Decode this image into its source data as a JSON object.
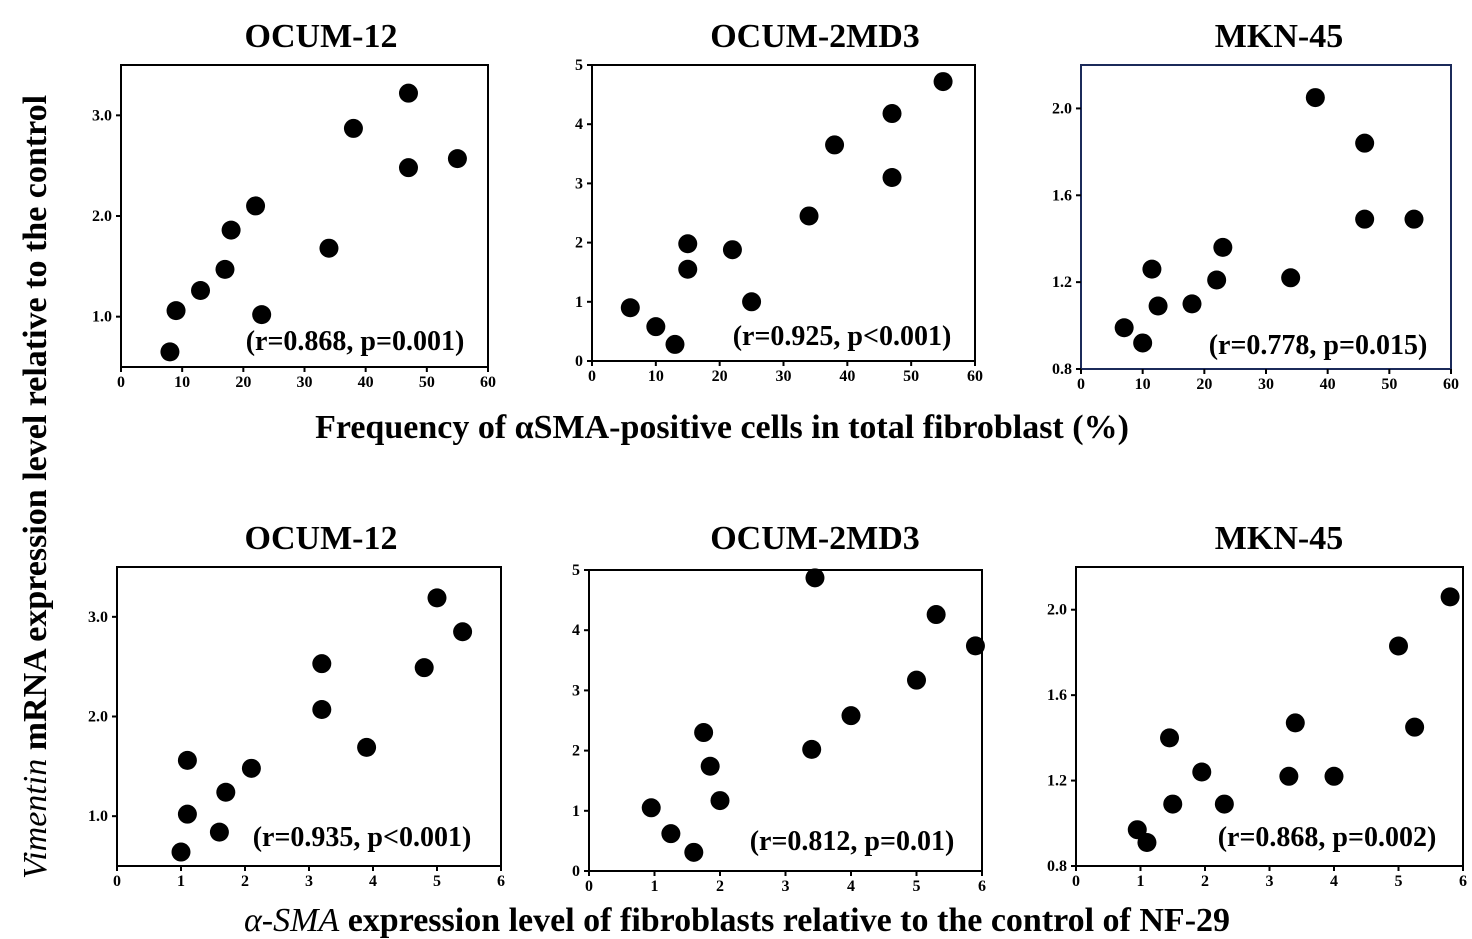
{
  "figure": {
    "y_label_italic": "Vimentin",
    "y_label_rest": " mRNA expression level relative to the control",
    "top_x_label": "Frequency of αSMA-positive cells in total fibroblast (%)",
    "bottom_x_label_italic": "α-SMA",
    "bottom_x_label_rest": " expression level of fibroblasts relative to the control of NF-29"
  },
  "chart_data": [
    {
      "type": "scatter",
      "title": "OCUM-12",
      "annotation": "(r=0.868, p=0.001)",
      "xlim": [
        0,
        60
      ],
      "ylim": [
        0.5,
        3.5
      ],
      "xticks": [
        0,
        10,
        20,
        30,
        40,
        50,
        60
      ],
      "xtick_labels": [
        "0",
        "10",
        "20",
        "30",
        "40",
        "50",
        "60"
      ],
      "yticks": [
        1.0,
        2.0,
        3.0
      ],
      "ytick_labels": [
        "1.0",
        "2.0",
        "3.0"
      ],
      "x": [
        8,
        9,
        13,
        17,
        18,
        22,
        23,
        34,
        38,
        47,
        47,
        55
      ],
      "y": [
        0.65,
        1.06,
        1.26,
        1.47,
        1.86,
        2.1,
        1.02,
        1.68,
        2.87,
        3.22,
        2.48,
        2.57
      ]
    },
    {
      "type": "scatter",
      "title": "OCUM-2MD3",
      "annotation": "(r=0.925, p<0.001)",
      "xlim": [
        0,
        60
      ],
      "ylim": [
        0,
        5
      ],
      "xticks": [
        0,
        10,
        20,
        30,
        40,
        50,
        60
      ],
      "xtick_labels": [
        "0",
        "10",
        "20",
        "30",
        "40",
        "50",
        "60"
      ],
      "yticks": [
        0,
        1,
        2,
        3,
        4,
        5
      ],
      "ytick_labels": [
        "0",
        "1",
        "2",
        "3",
        "4",
        "5"
      ],
      "x": [
        6,
        10,
        13,
        15,
        15,
        22,
        25,
        34,
        38,
        47,
        47,
        55
      ],
      "y": [
        0.9,
        0.58,
        0.28,
        1.98,
        1.55,
        1.88,
        1.0,
        2.45,
        3.65,
        4.18,
        3.1,
        4.72
      ]
    },
    {
      "type": "scatter",
      "title": "MKN-45",
      "annotation": "(r=0.778, p=0.015)",
      "xlim": [
        0,
        60
      ],
      "ylim": [
        0.8,
        2.2
      ],
      "xticks": [
        0,
        10,
        20,
        30,
        40,
        50,
        60
      ],
      "xtick_labels": [
        "0",
        "10",
        "20",
        "30",
        "40",
        "50",
        "60"
      ],
      "yticks": [
        0.8,
        1.2,
        1.6,
        2.0
      ],
      "ytick_labels": [
        "0.8",
        "1.2",
        "1.6",
        "2.0"
      ],
      "x": [
        7,
        10,
        11.5,
        12.5,
        18,
        22,
        23,
        34,
        38,
        46,
        46,
        54
      ],
      "y": [
        0.99,
        0.92,
        1.26,
        1.09,
        1.1,
        1.21,
        1.36,
        1.22,
        2.05,
        1.84,
        1.49,
        1.49
      ]
    },
    {
      "type": "scatter",
      "title": "OCUM-12",
      "annotation": "(r=0.935, p<0.001)",
      "xlim": [
        0,
        6
      ],
      "ylim": [
        0.5,
        3.5
      ],
      "xticks": [
        0,
        1,
        2,
        3,
        4,
        5,
        6
      ],
      "xtick_labels": [
        "0",
        "1",
        "2",
        "3",
        "4",
        "5",
        "6"
      ],
      "yticks": [
        1.0,
        2.0,
        3.0
      ],
      "ytick_labels": [
        "1.0",
        "2.0",
        "3.0"
      ],
      "x": [
        1.0,
        1.1,
        1.1,
        1.6,
        1.7,
        2.1,
        3.2,
        3.2,
        3.9,
        4.8,
        5.0,
        5.4
      ],
      "y": [
        0.64,
        1.02,
        1.56,
        0.84,
        1.24,
        1.48,
        2.53,
        2.07,
        1.69,
        2.49,
        3.19,
        2.85
      ]
    },
    {
      "type": "scatter",
      "title": "OCUM-2MD3",
      "annotation": "(r=0.812, p=0.01)",
      "xlim": [
        0,
        6
      ],
      "ylim": [
        0,
        5
      ],
      "xticks": [
        0,
        1,
        2,
        3,
        4,
        5,
        6
      ],
      "xtick_labels": [
        "0",
        "1",
        "2",
        "3",
        "4",
        "5",
        "6"
      ],
      "yticks": [
        0,
        1,
        2,
        3,
        4,
        5
      ],
      "ytick_labels": [
        "0",
        "1",
        "2",
        "3",
        "4",
        "5"
      ],
      "x": [
        0.95,
        1.25,
        1.6,
        1.75,
        1.85,
        2.0,
        3.4,
        3.45,
        4.0,
        5.0,
        5.3,
        5.9
      ],
      "y": [
        1.05,
        0.62,
        0.31,
        2.3,
        1.74,
        1.17,
        2.02,
        4.87,
        2.58,
        3.17,
        4.26,
        3.74
      ]
    },
    {
      "type": "scatter",
      "title": "MKN-45",
      "annotation": "(r=0.868, p=0.002)",
      "xlim": [
        0,
        6
      ],
      "ylim": [
        0.8,
        2.2
      ],
      "xticks": [
        0,
        1,
        2,
        3,
        4,
        5,
        6
      ],
      "xtick_labels": [
        "0",
        "1",
        "2",
        "3",
        "4",
        "5",
        "6"
      ],
      "yticks": [
        0.8,
        1.2,
        1.6,
        2.0
      ],
      "ytick_labels": [
        "0.8",
        "1.2",
        "1.6",
        "2.0"
      ],
      "x": [
        0.95,
        1.1,
        1.45,
        1.5,
        1.95,
        2.3,
        3.3,
        3.4,
        4.0,
        5.0,
        5.25,
        5.8
      ],
      "y": [
        0.97,
        0.91,
        1.4,
        1.09,
        1.24,
        1.09,
        1.22,
        1.47,
        1.22,
        1.83,
        1.45,
        2.06
      ]
    }
  ]
}
